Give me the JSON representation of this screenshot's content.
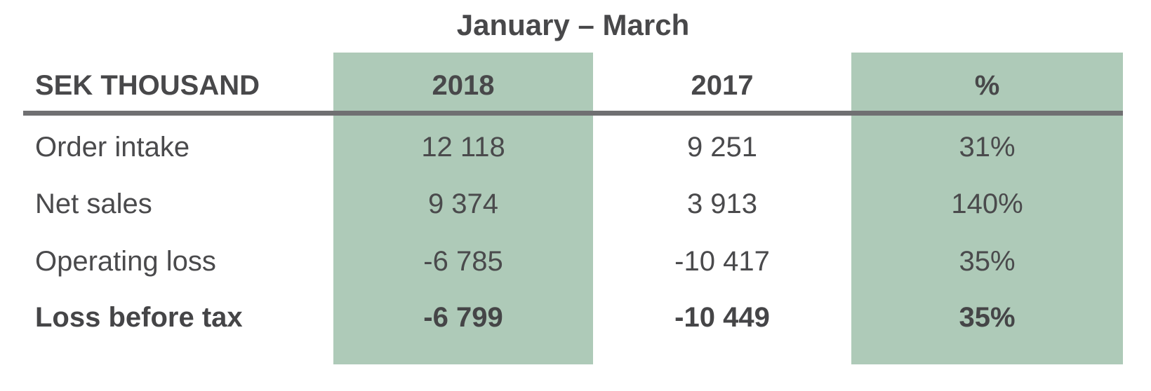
{
  "title": "January – March",
  "table": {
    "columns": {
      "label": "SEK THOUSAND",
      "y2018": "2018",
      "y2017": "2017",
      "pct": "%"
    },
    "rows": [
      {
        "label": "Order intake",
        "y2018": "12 118",
        "y2017": "9 251",
        "pct": "31%"
      },
      {
        "label": "Net sales",
        "y2018": "9 374",
        "y2017": "3 913",
        "pct": "140%"
      },
      {
        "label": "Operating loss",
        "y2018": "-6 785",
        "y2017": "-10 417",
        "pct": "35%"
      },
      {
        "label": "Loss before tax",
        "y2018": "-6 799",
        "y2017": "-10 449",
        "pct": "35%"
      }
    ]
  },
  "colors": {
    "highlight_band": "#aecab8",
    "text": "#4a4a4c",
    "header_rule": "#707072",
    "background": "#ffffff"
  }
}
